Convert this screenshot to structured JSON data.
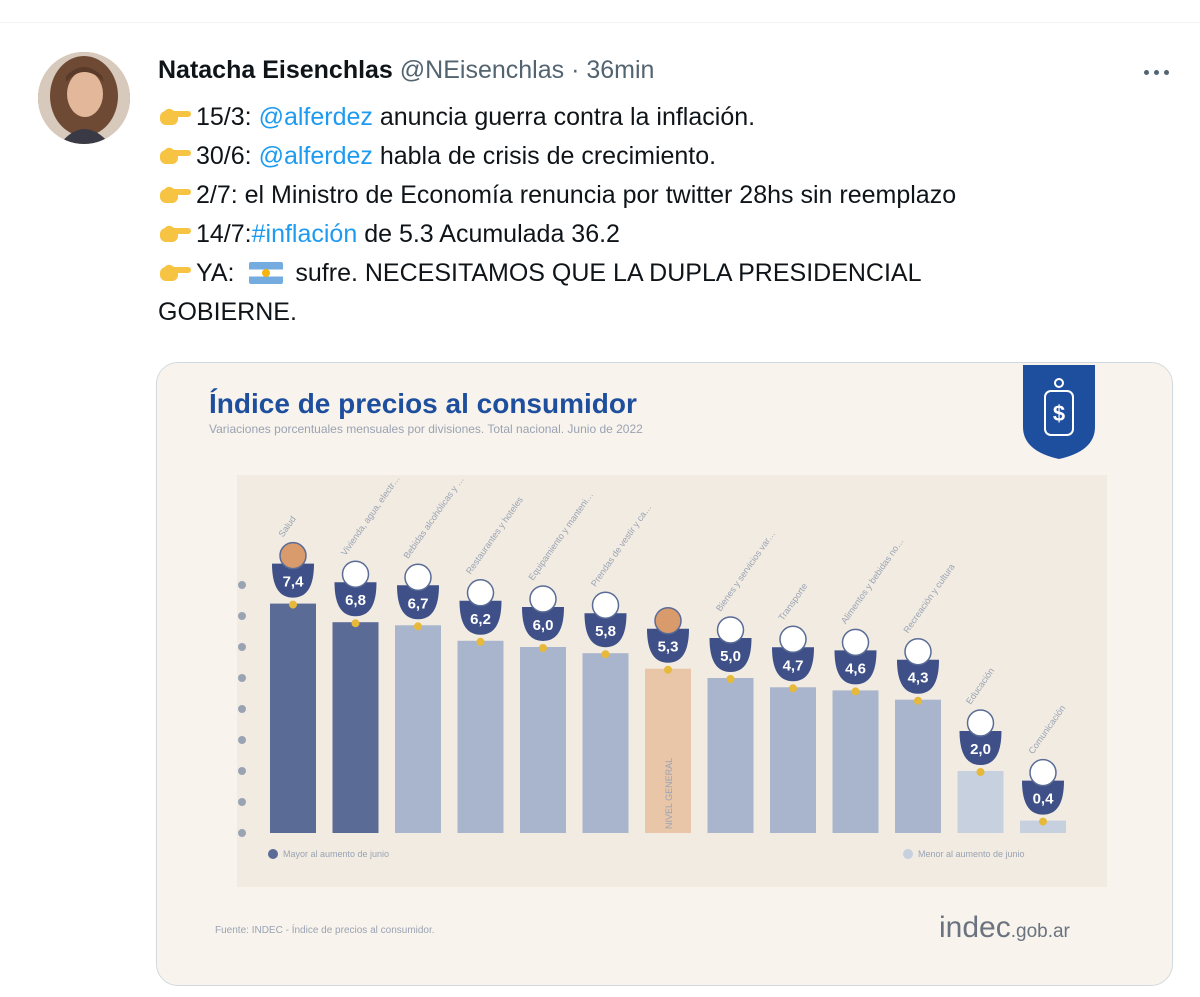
{
  "tweet": {
    "author_name": "Natacha Eisenchlas",
    "handle": "@NEisenchlas",
    "separator": "·",
    "time": "36min",
    "lines": [
      {
        "prefix": "15/3: ",
        "link": "@alferdez",
        "suffix": " anuncia guerra contra la inflación."
      },
      {
        "prefix": "30/6: ",
        "link": "@alferdez",
        "suffix": " habla de crisis de crecimiento."
      },
      {
        "prefix": "2/7: el Ministro de Economía renuncia por twitter 28hs sin reemplazo",
        "link": "",
        "suffix": ""
      },
      {
        "prefix": "14/7:",
        "link": "#inflación",
        "suffix": " de 5.3 Acumulada 36.2"
      },
      {
        "prefix": "YA: ",
        "link": "",
        "suffix": "sufre. NECESITAMOS QUE LA DUPLA PRESIDENCIAL"
      }
    ],
    "last_line": "GOBIERNE.",
    "icons": {
      "pointer": "backhand-index-pointing-right-icon",
      "flag": "argentina-flag-icon",
      "menu": "more-icon"
    }
  },
  "chart_data": {
    "type": "bar",
    "title": "Índice de precios al consumidor",
    "subtitle": "Variaciones porcentuales mensuales por divisiones. Total nacional. Junio de 2022",
    "categories": [
      "Salud",
      "Vivienda, agua, electricidad, gas y otros combustibles",
      "Bebidas alcohólicas y tabaco",
      "Restaurantes y hoteles",
      "Equipamiento y mantenimiento del hogar",
      "Prendas de vestir y calzado",
      "NIVEL GENERAL",
      "Bienes y servicios varios",
      "Transporte",
      "Alimentos y bebidas no alcohólicas",
      "Recreación y cultura",
      "Educación",
      "Comunicación"
    ],
    "values": [
      7.4,
      6.8,
      6.7,
      6.2,
      6.0,
      5.8,
      5.3,
      5.0,
      4.7,
      4.6,
      4.3,
      2.0,
      0.4
    ],
    "value_labels": [
      "7,4",
      "6,8",
      "6,7",
      "6,2",
      "6,0",
      "5,8",
      "5,3",
      "5,0",
      "4,7",
      "4,6",
      "4,3",
      "2,0",
      "0,4"
    ],
    "groups": [
      "above",
      "above",
      "above",
      "above",
      "above",
      "above",
      "general",
      "below",
      "below",
      "below",
      "below",
      "below",
      "below"
    ],
    "ylim": [
      0,
      8
    ],
    "yticks": [
      0,
      1,
      2,
      3,
      4,
      5,
      6,
      7,
      8
    ],
    "legend_left": "Mayor al aumento de junio",
    "legend_right": "Menor al aumento de junio",
    "source": "Fuente: INDEC - Índice de precios al consumidor.",
    "logo_main": "indec",
    "logo_suffix": ".gob.ar",
    "colors": {
      "dark_bar": "#5a6c96",
      "light_bar": "#a9b5cc",
      "general_bar": "#e9c6a8",
      "lighter_bar": "#c7d0df",
      "title": "#1e4f9e",
      "badge": "#3e5087",
      "dot": "#e7b93a",
      "bg": "#f8f3ec"
    }
  }
}
